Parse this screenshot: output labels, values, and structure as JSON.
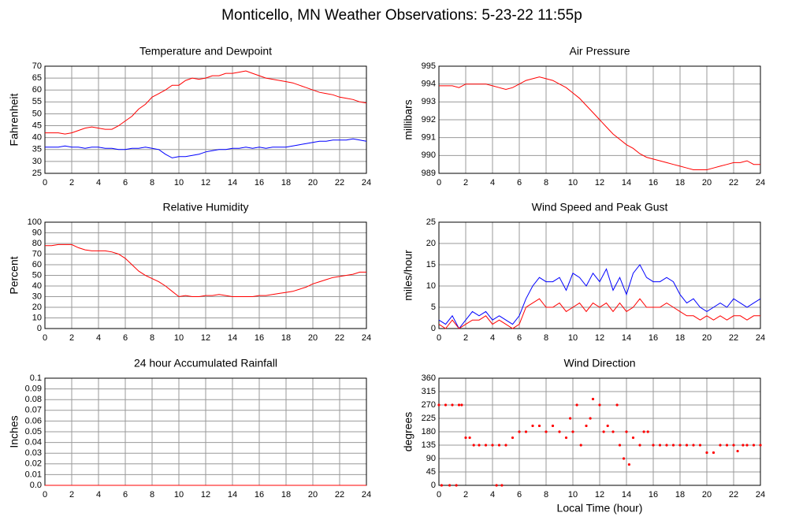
{
  "title": "Monticello, MN Weather Observations: 5-23-22 11:55p",
  "chart_data": [
    {
      "type": "line",
      "title": "Temperature and Dewpoint",
      "ylabel": "Fahrenheit",
      "x": [
        0,
        0.5,
        1,
        1.5,
        2,
        2.5,
        3,
        3.5,
        4,
        4.5,
        5,
        5.5,
        6,
        6.5,
        7,
        7.5,
        8,
        8.5,
        9,
        9.5,
        10,
        10.5,
        11,
        11.5,
        12,
        12.5,
        13,
        13.5,
        14,
        14.5,
        15,
        15.5,
        16,
        16.5,
        17,
        17.5,
        18,
        18.5,
        19,
        19.5,
        20,
        20.5,
        21,
        21.5,
        22,
        22.5,
        23,
        23.5,
        24
      ],
      "series": [
        {
          "color": "#ff0000",
          "values": [
            42,
            42,
            42,
            41.5,
            42,
            43,
            44,
            44.5,
            44,
            43.5,
            43.5,
            45,
            47,
            49,
            52,
            54,
            57,
            58.5,
            60,
            62,
            62,
            64,
            65,
            64.5,
            65,
            66,
            66,
            67,
            67,
            67.5,
            68,
            67,
            66,
            65,
            64.5,
            64,
            63.5,
            63,
            62,
            61,
            60,
            59,
            58.5,
            58,
            57,
            56.5,
            56,
            55,
            54.5
          ]
        },
        {
          "color": "#0000ff",
          "values": [
            36,
            36,
            36,
            36.5,
            36,
            36,
            35.5,
            36,
            36,
            35.5,
            35.5,
            35,
            35,
            35.5,
            35.5,
            36,
            35.5,
            35,
            33,
            31.5,
            32,
            32,
            32.5,
            33,
            34,
            34.5,
            35,
            35,
            35.5,
            35.5,
            36,
            35.5,
            36,
            35.5,
            36,
            36,
            36,
            36.5,
            37,
            37.5,
            38,
            38.5,
            38.5,
            39,
            39,
            39,
            39.5,
            39,
            38.5
          ]
        }
      ],
      "xlim": [
        0,
        24
      ],
      "xticks": [
        0,
        2,
        4,
        6,
        8,
        10,
        12,
        14,
        16,
        18,
        20,
        22,
        24
      ],
      "ylim": [
        25,
        70
      ],
      "yticks": [
        25,
        30,
        35,
        40,
        45,
        50,
        55,
        60,
        65,
        70
      ],
      "grid": true
    },
    {
      "type": "line",
      "title": "Air Pressure",
      "ylabel": "millibars",
      "x": [
        0,
        0.5,
        1,
        1.5,
        2,
        2.5,
        3,
        3.5,
        4,
        4.5,
        5,
        5.5,
        6,
        6.5,
        7,
        7.5,
        8,
        8.5,
        9,
        9.5,
        10,
        10.5,
        11,
        11.5,
        12,
        12.5,
        13,
        13.5,
        14,
        14.5,
        15,
        15.5,
        16,
        16.5,
        17,
        17.5,
        18,
        18.5,
        19,
        19.5,
        20,
        20.5,
        21,
        21.5,
        22,
        22.5,
        23,
        23.5,
        24
      ],
      "series": [
        {
          "color": "#ff0000",
          "values": [
            993.9,
            993.9,
            993.9,
            993.8,
            994.0,
            994.0,
            994.0,
            994.0,
            993.9,
            993.8,
            993.7,
            993.8,
            994.0,
            994.2,
            994.3,
            994.4,
            994.3,
            994.2,
            994.0,
            993.8,
            993.5,
            993.2,
            992.8,
            992.4,
            992.0,
            991.6,
            991.2,
            990.9,
            990.6,
            990.4,
            990.1,
            989.9,
            989.8,
            989.7,
            989.6,
            989.5,
            989.4,
            989.3,
            989.2,
            989.2,
            989.2,
            989.3,
            989.4,
            989.5,
            989.6,
            989.6,
            989.7,
            989.5,
            989.5
          ]
        }
      ],
      "xlim": [
        0,
        24
      ],
      "xticks": [
        0,
        2,
        4,
        6,
        8,
        10,
        12,
        14,
        16,
        18,
        20,
        22,
        24
      ],
      "ylim": [
        989,
        995
      ],
      "yticks": [
        989,
        990,
        991,
        992,
        993,
        994,
        995
      ],
      "grid": true
    },
    {
      "type": "line",
      "title": "Relative Humidity",
      "ylabel": "Percent",
      "x": [
        0,
        0.5,
        1,
        1.5,
        2,
        2.5,
        3,
        3.5,
        4,
        4.5,
        5,
        5.5,
        6,
        6.5,
        7,
        7.5,
        8,
        8.5,
        9,
        9.5,
        10,
        10.5,
        11,
        11.5,
        12,
        12.5,
        13,
        13.5,
        14,
        14.5,
        15,
        15.5,
        16,
        16.5,
        17,
        17.5,
        18,
        18.5,
        19,
        19.5,
        20,
        20.5,
        21,
        21.5,
        22,
        22.5,
        23,
        23.5,
        24
      ],
      "series": [
        {
          "color": "#ff0000",
          "values": [
            78,
            78,
            79,
            79,
            79,
            76,
            74,
            73,
            73,
            73,
            72,
            70,
            66,
            60,
            54,
            50,
            47,
            44,
            40,
            35,
            30,
            31,
            30,
            30,
            31,
            31,
            32,
            31,
            30,
            30,
            30,
            30,
            31,
            31,
            32,
            33,
            34,
            35,
            37,
            39,
            42,
            44,
            46,
            48,
            49,
            50,
            51,
            53,
            53
          ]
        }
      ],
      "xlim": [
        0,
        24
      ],
      "xticks": [
        0,
        2,
        4,
        6,
        8,
        10,
        12,
        14,
        16,
        18,
        20,
        22,
        24
      ],
      "ylim": [
        0,
        100
      ],
      "yticks": [
        0,
        10,
        20,
        30,
        40,
        50,
        60,
        70,
        80,
        90,
        100
      ],
      "grid": true
    },
    {
      "type": "line",
      "title": "Wind Speed and Peak Gust",
      "ylabel": "miles/hour",
      "x": [
        0,
        0.5,
        1,
        1.5,
        2,
        2.5,
        3,
        3.5,
        4,
        4.5,
        5,
        5.5,
        6,
        6.5,
        7,
        7.5,
        8,
        8.5,
        9,
        9.5,
        10,
        10.5,
        11,
        11.5,
        12,
        12.5,
        13,
        13.5,
        14,
        14.5,
        15,
        15.5,
        16,
        16.5,
        17,
        17.5,
        18,
        18.5,
        19,
        19.5,
        20,
        20.5,
        21,
        21.5,
        22,
        22.5,
        23,
        23.5,
        24
      ],
      "series": [
        {
          "color": "#0000ff",
          "values": [
            2,
            1,
            3,
            0,
            2,
            4,
            3,
            4,
            2,
            3,
            2,
            1,
            3,
            7,
            10,
            12,
            11,
            11,
            12,
            9,
            13,
            12,
            10,
            13,
            11,
            14,
            9,
            12,
            8,
            13,
            15,
            12,
            11,
            11,
            12,
            11,
            8,
            6,
            7,
            5,
            4,
            5,
            6,
            5,
            7,
            6,
            5,
            6,
            7
          ]
        },
        {
          "color": "#ff0000",
          "values": [
            1,
            0,
            2,
            0,
            1,
            2,
            2,
            3,
            1,
            2,
            1,
            0,
            1,
            5,
            6,
            7,
            5,
            5,
            6,
            4,
            5,
            6,
            4,
            6,
            5,
            6,
            4,
            6,
            4,
            5,
            7,
            5,
            5,
            5,
            6,
            5,
            4,
            3,
            3,
            2,
            3,
            2,
            3,
            2,
            3,
            3,
            2,
            3,
            3
          ]
        }
      ],
      "xlim": [
        0,
        24
      ],
      "xticks": [
        0,
        2,
        4,
        6,
        8,
        10,
        12,
        14,
        16,
        18,
        20,
        22,
        24
      ],
      "ylim": [
        0,
        25
      ],
      "yticks": [
        0,
        5,
        10,
        15,
        20,
        25
      ],
      "grid": true
    },
    {
      "type": "line",
      "title": "24 hour Accumulated Rainfall",
      "ylabel": "Inches",
      "x": [
        0,
        1,
        2,
        3,
        4,
        5,
        6,
        7,
        8,
        9,
        10,
        11,
        12,
        13,
        14,
        15,
        16,
        17,
        18,
        19,
        20,
        21,
        22,
        23,
        24
      ],
      "series": [
        {
          "color": "#ff0000",
          "values": [
            0,
            0,
            0,
            0,
            0,
            0,
            0,
            0,
            0,
            0,
            0,
            0,
            0,
            0,
            0,
            0,
            0,
            0,
            0,
            0,
            0,
            0,
            0,
            0,
            0
          ]
        }
      ],
      "xlim": [
        0,
        24
      ],
      "xticks": [
        0,
        2,
        4,
        6,
        8,
        10,
        12,
        14,
        16,
        18,
        20,
        22,
        24
      ],
      "ylim": [
        0,
        0.1
      ],
      "yticks": [
        {
          "value": 0,
          "label": "0.0"
        },
        0.01,
        0.02,
        0.03,
        0.04,
        0.05,
        0.06,
        0.07,
        0.08,
        0.09,
        0.1
      ],
      "grid": true
    },
    {
      "type": "scatter",
      "title": "Wind Direction",
      "ylabel": "degrees",
      "xlabel": "Local Time (hour)",
      "x": [
        0,
        0.5,
        1,
        1.5,
        0.2,
        0.8,
        1.3,
        1.7,
        2,
        2.3,
        2.6,
        3,
        3.5,
        4,
        4.5,
        4.3,
        4.7,
        5,
        5.5,
        6,
        6.5,
        7,
        7.5,
        8,
        8.5,
        9,
        9.5,
        9.8,
        10,
        10.3,
        10.6,
        11,
        11.3,
        11.5,
        12,
        12.3,
        12.6,
        13,
        13.3,
        13.5,
        13.8,
        14,
        14.2,
        14.5,
        15,
        15.3,
        15.6,
        16,
        16.5,
        17,
        17.5,
        18,
        18.5,
        19,
        19.5,
        20,
        20.5,
        21,
        21.5,
        22,
        22.3,
        22.7,
        23,
        23.5,
        24
      ],
      "series": [
        {
          "color": "#ff0000",
          "values": [
            270,
            270,
            270,
            270,
            0,
            0,
            0,
            270,
            160,
            160,
            135,
            135,
            135,
            135,
            135,
            0,
            0,
            135,
            160,
            180,
            180,
            200,
            200,
            180,
            200,
            180,
            160,
            225,
            180,
            270,
            135,
            200,
            225,
            290,
            270,
            180,
            200,
            180,
            270,
            135,
            90,
            180,
            70,
            160,
            135,
            180,
            180,
            135,
            135,
            135,
            135,
            135,
            135,
            135,
            135,
            110,
            110,
            135,
            135,
            135,
            115,
            135,
            135,
            135,
            135
          ]
        }
      ],
      "xlim": [
        0,
        24
      ],
      "xticks": [
        0,
        2,
        4,
        6,
        8,
        10,
        12,
        14,
        16,
        18,
        20,
        22,
        24
      ],
      "ylim": [
        0,
        360
      ],
      "yticks": [
        0,
        45,
        90,
        135,
        180,
        225,
        270,
        315,
        360
      ],
      "grid": true
    }
  ]
}
